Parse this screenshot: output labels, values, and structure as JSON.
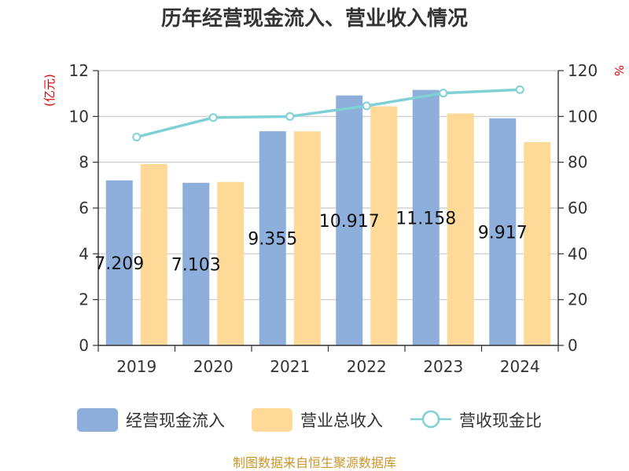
{
  "chart_data": {
    "type": "bar",
    "title": "历年经营现金流入、营业收入情况",
    "left_unit": "(亿元)",
    "right_unit": "%",
    "categories": [
      "2019",
      "2020",
      "2021",
      "2022",
      "2023",
      "2024"
    ],
    "left_ticks": [
      "0",
      "2",
      "4",
      "6",
      "8",
      "10",
      "12"
    ],
    "right_ticks": [
      "0",
      "20",
      "40",
      "60",
      "80",
      "100",
      "120"
    ],
    "ylim_left": [
      0,
      12
    ],
    "ylim_right": [
      0,
      120
    ],
    "series": [
      {
        "name": "经营现金流入",
        "kind": "bar",
        "axis": "left",
        "color": "#8eaedb",
        "values": [
          7.209,
          7.103,
          9.355,
          10.917,
          11.158,
          9.917
        ],
        "labels": [
          "7.209",
          "7.103",
          "9.355",
          "10.917",
          "11.158",
          "9.917"
        ]
      },
      {
        "name": "营业总收入",
        "kind": "bar",
        "axis": "left",
        "color": "#ffd998",
        "values": [
          7.92,
          7.14,
          9.35,
          10.44,
          10.13,
          8.88
        ]
      },
      {
        "name": "营收现金比",
        "kind": "line",
        "axis": "right",
        "color": "#7fd1d6",
        "values": [
          91.0,
          99.5,
          100.0,
          104.6,
          110.2,
          111.7
        ]
      }
    ],
    "grid": true,
    "legend_position": "bottom"
  },
  "footer": "制图数据来自恒生聚源数据库"
}
